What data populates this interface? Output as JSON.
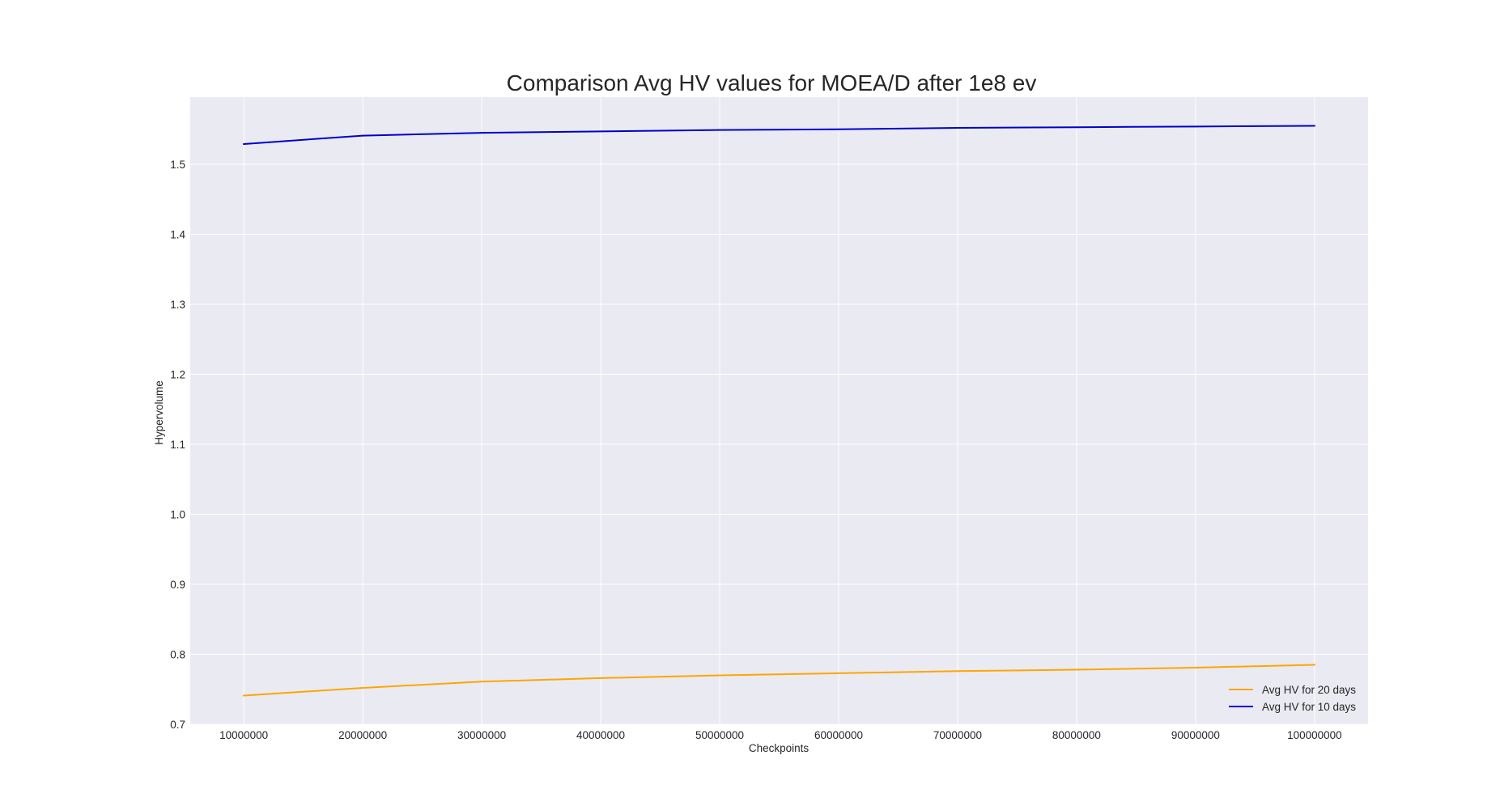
{
  "chart_data": {
    "type": "line",
    "title": "Comparison Avg HV values for MOEA/D after 1e8 ev",
    "xlabel": "Checkpoints",
    "ylabel": "Hypervolume",
    "x": [
      10000000,
      20000000,
      30000000,
      40000000,
      50000000,
      60000000,
      70000000,
      80000000,
      90000000,
      100000000
    ],
    "xticks": [
      "10000000",
      "20000000",
      "30000000",
      "40000000",
      "50000000",
      "60000000",
      "70000000",
      "80000000",
      "90000000",
      "100000000"
    ],
    "yticks": [
      "0.7",
      "0.8",
      "0.9",
      "1.0",
      "1.1",
      "1.2",
      "1.3",
      "1.4",
      "1.5"
    ],
    "xlim": [
      5500000,
      104500000
    ],
    "ylim": [
      0.7,
      1.596
    ],
    "grid": true,
    "legend_position": "lower-right",
    "background": "#eaeaf2",
    "series": [
      {
        "name": "Avg HV for 20 days",
        "color": "#ffa500",
        "values": [
          0.741,
          0.752,
          0.761,
          0.766,
          0.77,
          0.773,
          0.776,
          0.778,
          0.781,
          0.785
        ]
      },
      {
        "name": "Avg HV for 10 days",
        "color": "#0000cd",
        "values": [
          1.529,
          1.541,
          1.545,
          1.547,
          1.549,
          1.55,
          1.552,
          1.553,
          1.554,
          1.555
        ]
      }
    ]
  }
}
